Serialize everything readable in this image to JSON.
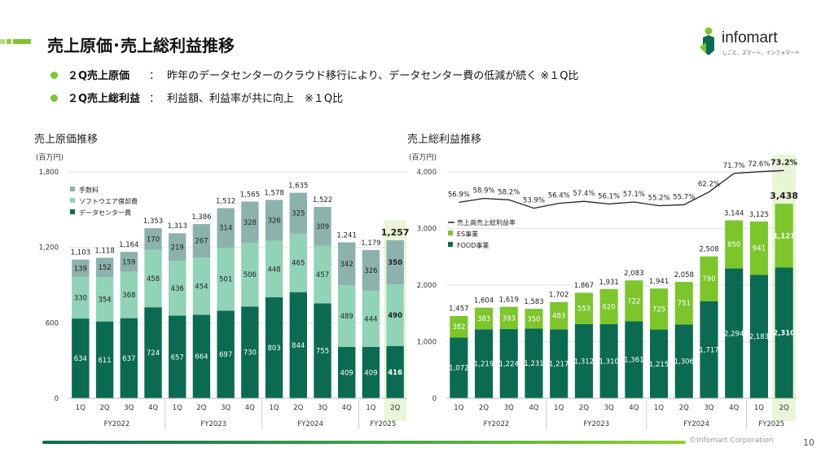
{
  "header": {
    "title": "売上原価･売上総利益推移"
  },
  "logo": {
    "name": "infomart",
    "tagline": "しごと、スマート。インフォマート"
  },
  "bullets": [
    {
      "label": "２Q売上原価",
      "sep": "：",
      "text": "昨年のデータセンターのクラウド移行により、データセンター費の低減が続く ※１Q比"
    },
    {
      "label": "２Q売上総利益",
      "sep": "：",
      "text": "利益額、利益率が共に向上　※１Q比"
    }
  ],
  "left_section": {
    "title": "売上原価推移",
    "unit": "(百万円)"
  },
  "right_section": {
    "title": "売上総利益推移",
    "unit": "(百万円)"
  },
  "colors": {
    "accent_green": "#7cc62c",
    "dark_green": "#0a6b52",
    "mid_teal": "#90d3b7",
    "gray_teal": "#8bb2ad",
    "highlight": "#e9f5d6"
  },
  "chart_data": [
    {
      "type": "bar",
      "stacked": true,
      "title": "売上原価推移",
      "ylabel": "(百万円)",
      "categories": [
        "1Q",
        "2Q",
        "3Q",
        "4Q",
        "1Q",
        "2Q",
        "3Q",
        "4Q",
        "1Q",
        "2Q",
        "3Q",
        "4Q",
        "1Q",
        "2Q"
      ],
      "fiscal_years": [
        "FY2022",
        "FY2023",
        "FY2024",
        "FY2025"
      ],
      "ylim": [
        0,
        1800
      ],
      "yticks": [
        "0",
        "600",
        "1,200",
        "1,800"
      ],
      "series": [
        {
          "name": "データセンター費",
          "color": "#0a6b52",
          "values": [
            634,
            611,
            637,
            724,
            657,
            664,
            697,
            730,
            803,
            844,
            755,
            409,
            409,
            416
          ]
        },
        {
          "name": "ソフトウエア償却費",
          "color": "#90d3b7",
          "values": [
            330,
            354,
            368,
            458,
            436,
            454,
            501,
            506,
            448,
            465,
            457,
            489,
            444,
            490
          ]
        },
        {
          "name": "手数料",
          "color": "#8bb2ad",
          "values": [
            139,
            152,
            159,
            170,
            219,
            267,
            314,
            328,
            326,
            325,
            309,
            342,
            326,
            350
          ]
        }
      ],
      "segment_labels": [
        [
          "634",
          "611",
          "637",
          "724",
          "657",
          "664",
          "697",
          "730",
          "803",
          "844",
          "755",
          "409",
          "409",
          "416"
        ],
        [
          "330",
          "354",
          "368",
          "458",
          "436",
          "454",
          "501",
          "506",
          "448",
          "465",
          "457",
          "489",
          "444",
          "490"
        ],
        [
          "139",
          "152",
          "159",
          "170",
          "219",
          "267",
          "314",
          "328",
          "326",
          "325",
          "309",
          "342",
          "326",
          "350"
        ]
      ],
      "totals": [
        1103,
        1118,
        1164,
        1353,
        1313,
        1386,
        1512,
        1565,
        1578,
        1635,
        1522,
        1241,
        1179,
        1257
      ],
      "total_labels": [
        "1,103",
        "1,118",
        "1,164",
        "1,353",
        "1,313",
        "1,386",
        "1,512",
        "1,565",
        "1,578",
        "1,635",
        "1,522",
        "1,241",
        "1,179",
        "1,257"
      ],
      "legend_position": "top-left"
    },
    {
      "type": "bar",
      "stacked": true,
      "title": "売上総利益推移",
      "ylabel": "(百万円)",
      "categories": [
        "1Q",
        "2Q",
        "3Q",
        "4Q",
        "1Q",
        "2Q",
        "3Q",
        "4Q",
        "1Q",
        "2Q",
        "3Q",
        "4Q",
        "1Q",
        "2Q"
      ],
      "fiscal_years": [
        "FY2022",
        "FY2023",
        "FY2024",
        "FY2025"
      ],
      "ylim": [
        0,
        4000
      ],
      "yticks": [
        "0",
        "1,000",
        "2,000",
        "3,000",
        "4,000"
      ],
      "series": [
        {
          "name": "FOOD事業",
          "color": "#0a6b52",
          "values": [
            1072,
            1219,
            1224,
            1231,
            1217,
            1312,
            1310,
            1361,
            1215,
            1306,
            1717,
            2294,
            2183,
            2310
          ]
        },
        {
          "name": "ES事業",
          "color": "#7cc62c",
          "values": [
            382,
            383,
            393,
            350,
            483,
            553,
            620,
            722,
            725,
            751,
            790,
            850,
            941,
            1127
          ]
        }
      ],
      "segment_labels": [
        [
          "1,072",
          "1,219",
          "1,224",
          "1,231",
          "1,217",
          "1,312",
          "1,310",
          "1,361",
          "1,215",
          "1,306",
          "1,717",
          "2,294",
          "2,183",
          "2,310"
        ],
        [
          "382",
          "383",
          "393",
          "350",
          "483",
          "553",
          "620",
          "722",
          "725",
          "751",
          "790",
          "850",
          "941",
          "1,127"
        ]
      ],
      "totals": [
        1457,
        1604,
        1619,
        1583,
        1702,
        1867,
        1931,
        2083,
        1941,
        2058,
        2508,
        3144,
        3125,
        3438
      ],
      "total_labels": [
        "1,457",
        "1,604",
        "1,619",
        "1,583",
        "1,702",
        "1,867",
        "1,931",
        "2,083",
        "1,941",
        "2,058",
        "2,508",
        "3,144",
        "3,125",
        "3,438"
      ],
      "line_series": {
        "name": "売上高売上総利益率",
        "values": [
          56.9,
          58.9,
          58.2,
          53.9,
          56.4,
          57.4,
          56.1,
          57.1,
          55.2,
          55.7,
          62.2,
          71.7,
          72.6,
          73.2
        ],
        "labels": [
          "56.9%",
          "58.9%",
          "58.2%",
          "53.9%",
          "56.4%",
          "57.4%",
          "56.1%",
          "57.1%",
          "55.2%",
          "55.7%",
          "62.2%",
          "71.7%",
          "72.6%",
          "73.2%"
        ]
      },
      "legend_position": "top-left"
    }
  ],
  "footer": {
    "copyright": "©Infomart Corporation",
    "page": "10"
  }
}
